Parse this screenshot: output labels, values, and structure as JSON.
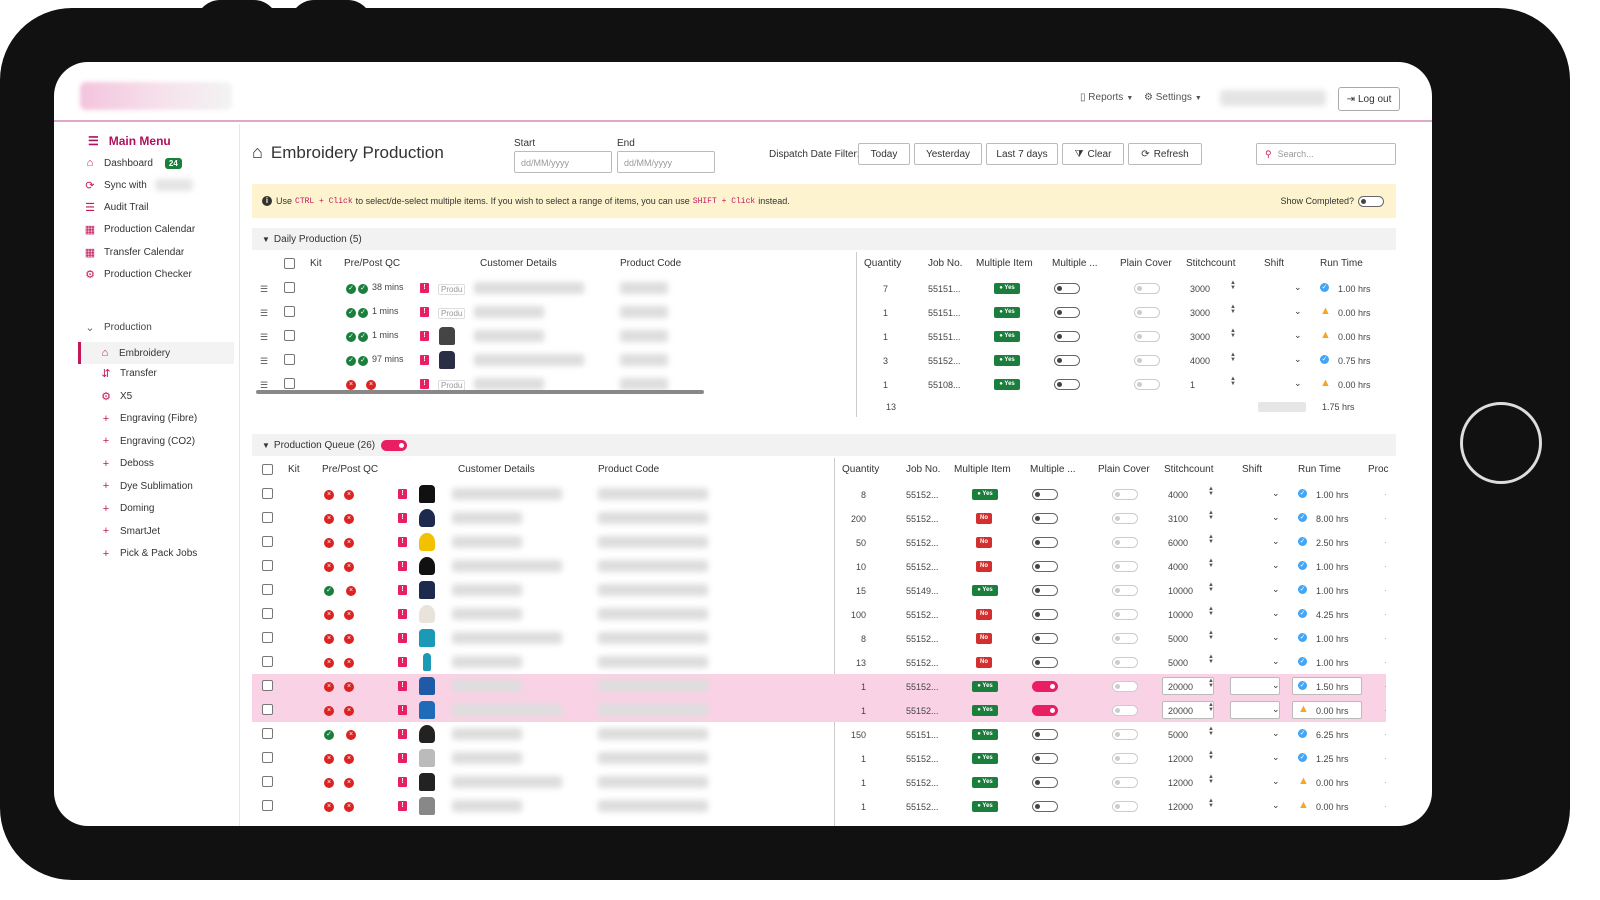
{
  "nav": {
    "reports": "Reports",
    "settings": "Settings",
    "logout": "Log out"
  },
  "sidebar": {
    "title": "Main Menu",
    "items": [
      {
        "label": "Dashboard",
        "icon": "home-icon",
        "badge": "24"
      },
      {
        "label": "Sync with",
        "icon": "sync-icon"
      },
      {
        "label": "Audit Trail",
        "icon": "list-icon"
      },
      {
        "label": "Production Calendar",
        "icon": "calendar-icon"
      },
      {
        "label": "Transfer Calendar",
        "icon": "calendar-icon"
      },
      {
        "label": "Production Checker",
        "icon": "gear-icon"
      }
    ],
    "group": "Production",
    "sub": [
      {
        "label": "Embroidery",
        "icon": "home-icon"
      },
      {
        "label": "Transfer",
        "icon": "transfer-icon"
      },
      {
        "label": "X5",
        "icon": "gear-icon"
      },
      {
        "label": "Engraving (Fibre)",
        "icon": "plus-icon"
      },
      {
        "label": "Engraving (CO2)",
        "icon": "plus-icon"
      },
      {
        "label": "Deboss",
        "icon": "plus-icon"
      },
      {
        "label": "Dye Sublimation",
        "icon": "plus-icon"
      },
      {
        "label": "Doming",
        "icon": "plus-icon"
      },
      {
        "label": "SmartJet",
        "icon": "plus-icon"
      },
      {
        "label": "Pick & Pack Jobs",
        "icon": "plus-icon"
      }
    ]
  },
  "page": {
    "title": "Embroidery Production"
  },
  "filters": {
    "start_label": "Start",
    "end_label": "End",
    "start_placeholder": "dd/MM/yyyy",
    "end_placeholder": "dd/MM/yyyy",
    "dispatch_label": "Dispatch Date Filter:",
    "today": "Today",
    "yesterday": "Yesterday",
    "last7": "Last 7 days",
    "clear": "Clear",
    "refresh": "Refresh",
    "search_placeholder": "Search..."
  },
  "banner": {
    "text1": "Use",
    "key1": "CTRL + Click",
    "text2": "to select/de-select multiple items. If you wish to select a range of items, you can use",
    "key2": "SHIFT + Click",
    "text3": "instead.",
    "show_completed": "Show Completed?"
  },
  "daily": {
    "title": "Daily Production (5)",
    "headers": {
      "kit": "Kit",
      "qc": "Pre/Post QC",
      "customer": "Customer Details",
      "product": "Product Code",
      "qty": "Quantity",
      "job": "Job No.",
      "multi_item": "Multiple Item",
      "multi2": "Multiple ...",
      "plain": "Plain Cover",
      "stitch": "Stitchcount",
      "shift": "Shift",
      "run": "Run Time"
    },
    "rows": [
      {
        "qc": [
          "ok",
          "ok"
        ],
        "mins": "38 mins",
        "img": "text",
        "qty": "7",
        "job": "55151...",
        "multi": "Yes",
        "stitch": "3000",
        "rt": "ok",
        "run": "1.00 hrs"
      },
      {
        "qc": [
          "ok",
          "ok"
        ],
        "mins": "1 mins",
        "img": "text",
        "qty": "1",
        "job": "55151...",
        "multi": "Yes",
        "stitch": "3000",
        "rt": "warn",
        "run": "0.00 hrs"
      },
      {
        "qc": [
          "ok",
          "ok"
        ],
        "mins": "1 mins",
        "img": "jacket",
        "qty": "1",
        "job": "55151...",
        "multi": "Yes",
        "stitch": "3000",
        "rt": "warn",
        "run": "0.00 hrs"
      },
      {
        "qc": [
          "ok",
          "ok"
        ],
        "mins": "97 mins",
        "img": "vest",
        "qty": "3",
        "job": "55152...",
        "multi": "Yes",
        "stitch": "4000",
        "rt": "ok",
        "run": "0.75 hrs"
      },
      {
        "qc": [
          "x",
          "x"
        ],
        "mins": "",
        "img": "text",
        "qty": "1",
        "job": "55108...",
        "multi": "Yes",
        "stitch": "1",
        "rt": "warn",
        "run": "0.00 hrs"
      }
    ],
    "total_qty": "13",
    "total_run": "1.75 hrs",
    "img_alt": "Produ"
  },
  "queue": {
    "title": "Production Queue (26)",
    "headers": {
      "kit": "Kit",
      "qc": "Pre/Post QC",
      "customer": "Customer Details",
      "product": "Product Code",
      "qty": "Quantity",
      "job": "Job No.",
      "multi_item": "Multiple Item",
      "multi2": "Multiple ...",
      "plain": "Plain Cover",
      "stitch": "Stitchcount",
      "shift": "Shift",
      "run": "Run Time",
      "proc": "Proc"
    },
    "rows": [
      {
        "qc": [
          "x",
          "x"
        ],
        "img": "tshirt-black",
        "qty": "8",
        "job": "55152...",
        "multi": "Yes",
        "on": false,
        "stitch": "4000",
        "rt": "ok",
        "run": "1.00 hrs"
      },
      {
        "qc": [
          "x",
          "x"
        ],
        "img": "cap-navy",
        "qty": "200",
        "job": "55152...",
        "multi": "No",
        "on": false,
        "stitch": "3100",
        "rt": "ok",
        "run": "8.00 hrs"
      },
      {
        "qc": [
          "x",
          "x"
        ],
        "img": "cap-yellow",
        "qty": "50",
        "job": "55152...",
        "multi": "No",
        "on": false,
        "stitch": "6000",
        "rt": "ok",
        "run": "2.50 hrs"
      },
      {
        "qc": [
          "x",
          "x"
        ],
        "img": "cap-black",
        "qty": "10",
        "job": "55152...",
        "multi": "No",
        "on": false,
        "stitch": "4000",
        "rt": "ok",
        "run": "1.00 hrs"
      },
      {
        "qc": [
          "ok",
          "x"
        ],
        "img": "hoodie-navy",
        "qty": "15",
        "job": "55149...",
        "multi": "Yes",
        "on": false,
        "stitch": "10000",
        "rt": "ok",
        "run": "1.00 hrs"
      },
      {
        "qc": [
          "x",
          "x"
        ],
        "img": "cap-white",
        "qty": "100",
        "job": "55152...",
        "multi": "No",
        "on": false,
        "stitch": "10000",
        "rt": "ok",
        "run": "4.25 hrs"
      },
      {
        "qc": [
          "x",
          "x"
        ],
        "img": "jacket-teal",
        "qty": "8",
        "job": "55152...",
        "multi": "No",
        "on": false,
        "stitch": "5000",
        "rt": "ok",
        "run": "1.00 hrs"
      },
      {
        "qc": [
          "x",
          "x"
        ],
        "img": "bottle-teal",
        "qty": "13",
        "job": "55152...",
        "multi": "No",
        "on": false,
        "stitch": "5000",
        "rt": "ok",
        "run": "1.00 hrs"
      },
      {
        "qc": [
          "x",
          "x"
        ],
        "img": "shirt-blue",
        "qty": "1",
        "job": "55152...",
        "multi": "Yes",
        "on": true,
        "stitch": "20000",
        "rt": "ok",
        "run": "1.50 hrs",
        "sel": true
      },
      {
        "qc": [
          "x",
          "x"
        ],
        "img": "jacket-blue",
        "qty": "1",
        "job": "55152...",
        "multi": "Yes",
        "on": true,
        "stitch": "20000",
        "rt": "warn",
        "run": "0.00 hrs",
        "sel": true
      },
      {
        "qc": [
          "ok",
          "x"
        ],
        "img": "beanie-black",
        "qty": "150",
        "job": "55151...",
        "multi": "Yes",
        "on": false,
        "stitch": "5000",
        "rt": "ok",
        "run": "6.25 hrs"
      },
      {
        "qc": [
          "x",
          "x"
        ],
        "img": "fleece-grey",
        "qty": "1",
        "job": "55152...",
        "multi": "Yes",
        "on": false,
        "stitch": "12000",
        "rt": "ok",
        "run": "1.25 hrs"
      },
      {
        "qc": [
          "x",
          "x"
        ],
        "img": "fleece-black",
        "qty": "1",
        "job": "55152...",
        "multi": "Yes",
        "on": false,
        "stitch": "12000",
        "rt": "warn",
        "run": "0.00 hrs"
      },
      {
        "qc": [
          "x",
          "x"
        ],
        "img": "fleece-grey2",
        "qty": "1",
        "job": "55152...",
        "multi": "Yes",
        "on": false,
        "stitch": "12000",
        "rt": "warn",
        "run": "0.00 hrs"
      }
    ]
  },
  "colors": {
    "accent": "#c2185b",
    "yes": "#1a7f3c",
    "no": "#d32f2f",
    "banner": "#fdf4cf",
    "selected": "#f9d3e5"
  }
}
